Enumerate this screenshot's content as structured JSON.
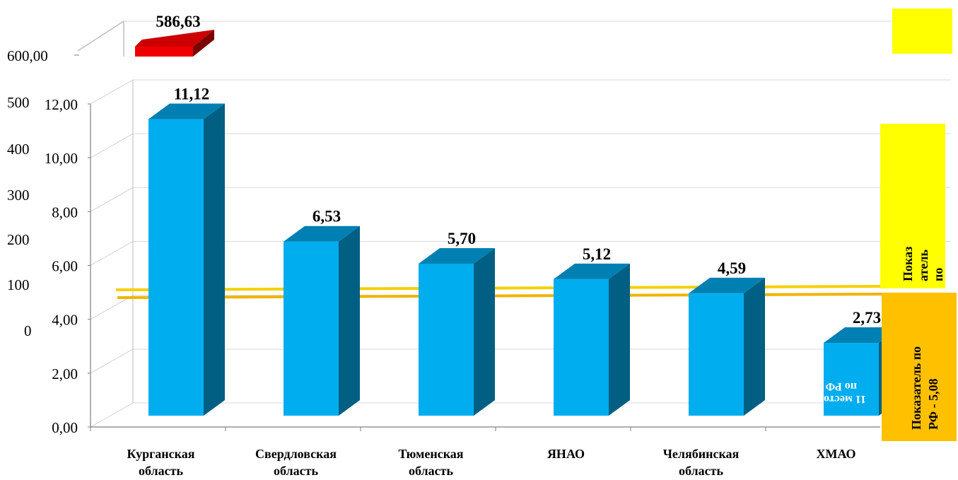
{
  "chart_data": [
    {
      "type": "bar",
      "categories": [
        "Курганская область",
        "Свердловская область",
        "Тюменская область",
        "ЯНАО",
        "Челябинская область",
        "ХМАО"
      ],
      "values": [
        11.12,
        6.53,
        5.7,
        5.12,
        4.59,
        2.73
      ],
      "value_labels": [
        "11,12",
        "6,53",
        "5,70",
        "5,12",
        "4,59",
        "2,73"
      ],
      "y_ticks": [
        "0,00",
        "2,00",
        "4,00",
        "6,00",
        "8,00",
        "10,00",
        "12,00"
      ],
      "ylim": [
        0,
        12
      ],
      "reference_line": {
        "value": 5.08,
        "color": "#f5d000"
      },
      "reference_line_2": {
        "color": "#f0b400"
      },
      "bar_color": "#00adef",
      "bar_side_color": "#005f82",
      "bar_top_color": "#0080b2",
      "grid": true,
      "title": "",
      "xlabel": "",
      "ylabel": ""
    },
    {
      "type": "bar",
      "values": [
        586.63
      ],
      "value_labels": [
        "586,63"
      ],
      "y_ticks_visible": [
        "600,00",
        "500",
        "400",
        "300",
        "200",
        "100",
        "0"
      ],
      "bar_color": "#ee0000",
      "bar_side_color": "#7a0000",
      "grid": true
    }
  ],
  "annotations": {
    "legend_box_top_text": "Показ атель по",
    "legend_box_bottom_text": "Показатель по РФ - 5,08",
    "legend_box_top_color": "#ffff00",
    "legend_box_bottom_color": "#ffc000",
    "hidden_bar_text_1": "11 место",
    "hidden_bar_text_2": "по РФ"
  }
}
